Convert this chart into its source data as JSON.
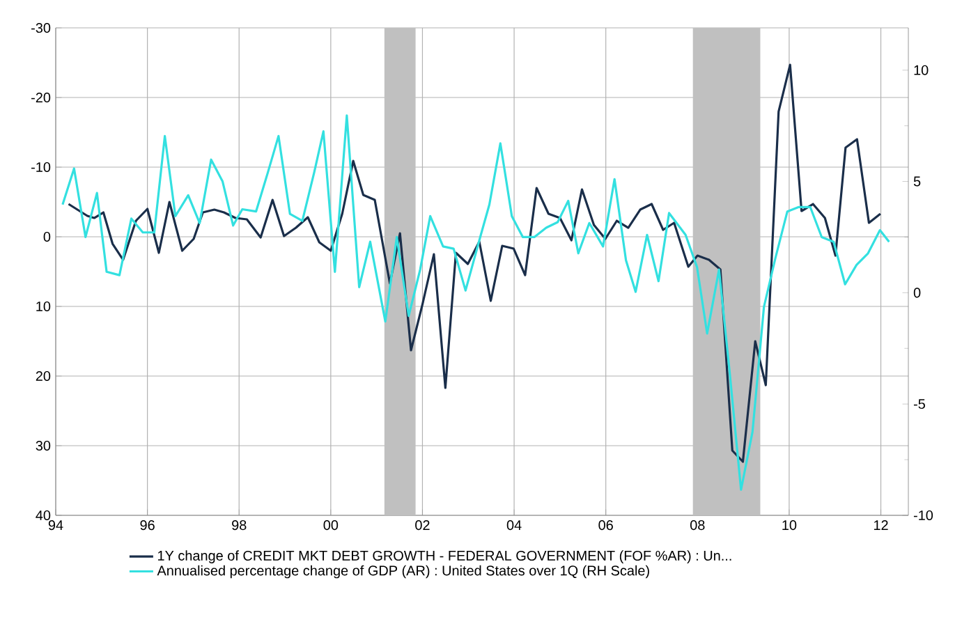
{
  "chart_data": {
    "type": "line",
    "legend": "bottom",
    "grid": true,
    "line_style": "solid",
    "marker": "none",
    "xlim": [
      1994,
      2012.6
    ],
    "xticks": [
      {
        "value": 1994,
        "label": "94"
      },
      {
        "value": 1996,
        "label": "96"
      },
      {
        "value": 1998,
        "label": "98"
      },
      {
        "value": 2000,
        "label": "00"
      },
      {
        "value": 2002,
        "label": "02"
      },
      {
        "value": 2004,
        "label": "04"
      },
      {
        "value": 2006,
        "label": "06"
      },
      {
        "value": 2008,
        "label": "08"
      },
      {
        "value": 2010,
        "label": "10"
      },
      {
        "value": 2012,
        "label": "12"
      }
    ],
    "ylim": [
      40,
      -30
    ],
    "yticks": [
      -30,
      -20,
      -10,
      0,
      10,
      20,
      30,
      40
    ],
    "y2lim": [
      -10,
      11.9
    ],
    "y2ticks": [
      -10,
      -5,
      0,
      5,
      10
    ],
    "bands": [
      {
        "axis": "x",
        "from": 2001.17,
        "to": 2001.85,
        "color": "#c0c0c0"
      },
      {
        "axis": "x",
        "from": 2007.9,
        "to": 2009.37,
        "color": "#c0c0c0"
      }
    ],
    "series": [
      {
        "name": "1Y change of CREDIT MKT DEBT GROWTH - FEDERAL GOVERNMENT (FOF %AR) : Un...",
        "color": "#1a2e4a",
        "x": [
          1994.28,
          1994.69,
          1994.84,
          1995.04,
          1995.24,
          1995.47,
          1995.75,
          1996.0,
          1996.25,
          1996.48,
          1996.76,
          1997.01,
          1997.21,
          1997.46,
          1997.67,
          1997.92,
          1998.17,
          1998.47,
          1998.73,
          1998.98,
          1999.24,
          1999.5,
          1999.75,
          2000.0,
          2000.25,
          2000.49,
          2000.71,
          2000.96,
          2001.29,
          2001.51,
          2001.75,
          2002.0,
          2002.25,
          2002.5,
          2002.73,
          2002.99,
          2003.24,
          2003.49,
          2003.74,
          2003.99,
          2004.24,
          2004.49,
          2004.75,
          2005.0,
          2005.25,
          2005.48,
          2005.74,
          2005.99,
          2006.24,
          2006.49,
          2006.75,
          2007.0,
          2007.25,
          2007.49,
          2007.8,
          2008.0,
          2008.25,
          2008.5,
          2008.76,
          2008.99,
          2009.26,
          2009.49,
          2009.77,
          2010.02,
          2010.27,
          2010.52,
          2010.78,
          2011.01,
          2011.23,
          2011.48,
          2011.74,
          2011.99
        ],
        "values": [
          -4.7,
          -3.0,
          -2.7,
          -3.5,
          1.0,
          3.3,
          -2.3,
          -4.0,
          2.3,
          -5.0,
          2.0,
          0.3,
          -3.5,
          -3.9,
          -3.5,
          -2.7,
          -2.5,
          0.1,
          -5.3,
          -0.1,
          -1.3,
          -2.8,
          0.8,
          2.0,
          -3.3,
          -10.9,
          -6.0,
          -5.3,
          6.7,
          -0.5,
          16.3,
          9.7,
          2.5,
          21.7,
          2.3,
          3.9,
          0.7,
          9.2,
          1.3,
          1.7,
          5.5,
          -7.0,
          -3.3,
          -2.7,
          0.5,
          -6.8,
          -1.7,
          0.3,
          -2.3,
          -1.3,
          -3.9,
          -4.7,
          -1.0,
          -2.0,
          4.3,
          2.7,
          3.3,
          4.7,
          30.7,
          32.3,
          15.0,
          21.3,
          -18.0,
          -24.7,
          -3.7,
          -4.7,
          -2.7,
          2.7,
          -12.8,
          -14.0,
          -2.0,
          -3.3
        ]
      },
      {
        "name": "Annualised percentage change of GDP (AR) : United States over 1Q (RH Scale)",
        "color": "#33e0e0",
        "axis": "y2",
        "x": [
          1994.15,
          1994.4,
          1994.65,
          1994.9,
          1995.11,
          1995.39,
          1995.65,
          1995.9,
          1996.15,
          1996.38,
          1996.61,
          1996.89,
          1997.14,
          1997.39,
          1997.64,
          1997.87,
          1998.07,
          1998.37,
          1998.63,
          1998.86,
          1999.11,
          1999.38,
          1999.64,
          1999.84,
          2000.09,
          2000.35,
          2000.62,
          2000.86,
          2001.19,
          2001.44,
          2001.7,
          2001.95,
          2002.17,
          2002.45,
          2002.68,
          2002.94,
          2003.26,
          2003.46,
          2003.7,
          2003.95,
          2004.19,
          2004.44,
          2004.7,
          2004.95,
          2005.18,
          2005.4,
          2005.64,
          2005.94,
          2006.19,
          2006.44,
          2006.65,
          2006.9,
          2007.15,
          2007.38,
          2007.74,
          2007.99,
          2008.21,
          2008.47,
          2008.7,
          2008.95,
          2009.2,
          2009.45,
          2009.7,
          2009.96,
          2010.21,
          2010.46,
          2010.71,
          2010.97,
          2011.22,
          2011.47,
          2011.72,
          2011.98,
          2012.18
        ],
        "values": [
          3.96,
          5.58,
          2.5,
          4.48,
          0.94,
          0.79,
          3.33,
          2.71,
          2.71,
          7.04,
          3.44,
          4.38,
          3.13,
          5.98,
          5.0,
          3.02,
          3.75,
          3.65,
          5.42,
          7.04,
          3.54,
          3.23,
          5.42,
          7.25,
          0.94,
          7.96,
          0.25,
          2.29,
          -1.29,
          2.5,
          -1.04,
          1.04,
          3.44,
          2.08,
          1.98,
          0.1,
          2.5,
          3.96,
          6.71,
          3.44,
          2.5,
          2.5,
          2.92,
          3.17,
          4.13,
          1.77,
          3.13,
          2.08,
          5.1,
          1.46,
          0.04,
          2.6,
          0.52,
          3.58,
          2.6,
          1.15,
          -1.83,
          1.04,
          -3.54,
          -8.85,
          -6.25,
          -0.63,
          1.56,
          3.65,
          3.85,
          3.85,
          2.5,
          2.29,
          0.38,
          1.25,
          1.77,
          2.81,
          2.29
        ]
      }
    ]
  }
}
